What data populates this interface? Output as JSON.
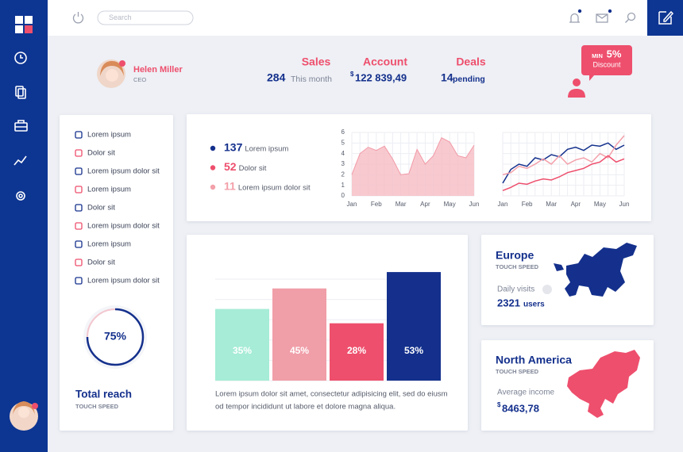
{
  "topbar": {
    "search_placeholder": "Search"
  },
  "profile": {
    "name": "Helen Miller",
    "role": "CEO"
  },
  "stats": [
    {
      "title": "Sales",
      "value": "284",
      "note": "This month"
    },
    {
      "title": "Account",
      "currency": "$",
      "value": "122 839,49"
    },
    {
      "title": "Deals",
      "value": "14",
      "note": "pending"
    }
  ],
  "promo": {
    "prefix": "MIN",
    "value": "5%",
    "label": "Discount"
  },
  "menu": [
    "Lorem ipsum",
    "Dolor sit",
    "Lorem ipsum dolor sit",
    "Lorem ipsum",
    "Dolor sit",
    "Lorem ipsum dolor sit",
    "Lorem ipsum",
    "Dolor sit",
    "Lorem ipsum dolor sit"
  ],
  "reach": {
    "value": 75,
    "label": "75%",
    "title": "Total reach",
    "subtitle": "TOUCH SPEED"
  },
  "legend": [
    {
      "value": 137,
      "text": "Lorem ipsum",
      "color": "#14308c"
    },
    {
      "value": 52,
      "text": "Dolor sit",
      "color": "#ee4f6d"
    },
    {
      "value": 11,
      "text": "Lorem ipsum dolor sit",
      "color": "#f3a0aa"
    }
  ],
  "area_chart": {
    "type": "area",
    "categories": [
      "Jan",
      null,
      null,
      "Feb",
      null,
      null,
      "Mar",
      null,
      null,
      "Apr",
      null,
      null,
      "May",
      null,
      null,
      "Jun"
    ],
    "values": [
      2,
      4,
      4.6,
      4.3,
      4.7,
      3.5,
      2,
      2.1,
      4.4,
      3,
      3.8,
      5.5,
      5.1,
      3.8,
      3.6,
      4.8
    ],
    "color": "#f5b8c0",
    "ylim": [
      0,
      6
    ],
    "yticks": [
      0,
      1,
      2,
      3,
      4,
      5,
      6
    ],
    "grid": true
  },
  "line_chart": {
    "type": "line",
    "categories": [
      "Jan",
      null,
      null,
      "Feb",
      null,
      null,
      "Mar",
      null,
      null,
      "Apr",
      null,
      null,
      "May",
      null,
      null,
      "Jun"
    ],
    "ylim": [
      0,
      6
    ],
    "grid": true,
    "series": [
      {
        "color": "#14308c",
        "values": [
          1.2,
          2.5,
          3,
          2.8,
          3.6,
          3.4,
          3.9,
          3.7,
          4.4,
          4.6,
          4.3,
          4.8,
          4.7,
          5,
          4.4,
          4.8
        ]
      },
      {
        "color": "#f3a0aa",
        "values": [
          2,
          2.2,
          2.8,
          2.6,
          3,
          3.5,
          3,
          3.8,
          3,
          3.4,
          3.6,
          3.2,
          4,
          3.6,
          4.8,
          5.7
        ]
      },
      {
        "color": "#ee4f6d",
        "values": [
          0.5,
          0.8,
          1.2,
          1.1,
          1.4,
          1.6,
          1.5,
          1.8,
          2.2,
          2.4,
          2.6,
          3,
          3.2,
          3.8,
          3.2,
          3.5
        ]
      }
    ]
  },
  "bar_chart": {
    "type": "bar",
    "values": [
      35,
      45,
      28,
      53
    ],
    "value_labels": [
      "35%",
      "45%",
      "28%",
      "53%"
    ],
    "colors": [
      "#a6ecd6",
      "#f09ea8",
      "#ee4f6d",
      "#14308c"
    ],
    "ylim": [
      0,
      60
    ],
    "caption": [
      "Lorem ipsum dolor sit amet, consectetur adipisicing elit, sed do eiusm",
      "od tempor incididunt ut labore et dolore magna aliqua."
    ]
  },
  "regions": [
    {
      "title": "Europe",
      "subtitle": "TOUCH SPEED",
      "label": "Daily visits",
      "value": "2321",
      "unit": "users"
    },
    {
      "title": "North America",
      "subtitle": "TOUCH SPEED",
      "label": "Average income",
      "currency": "$",
      "value": "8463,78"
    }
  ]
}
